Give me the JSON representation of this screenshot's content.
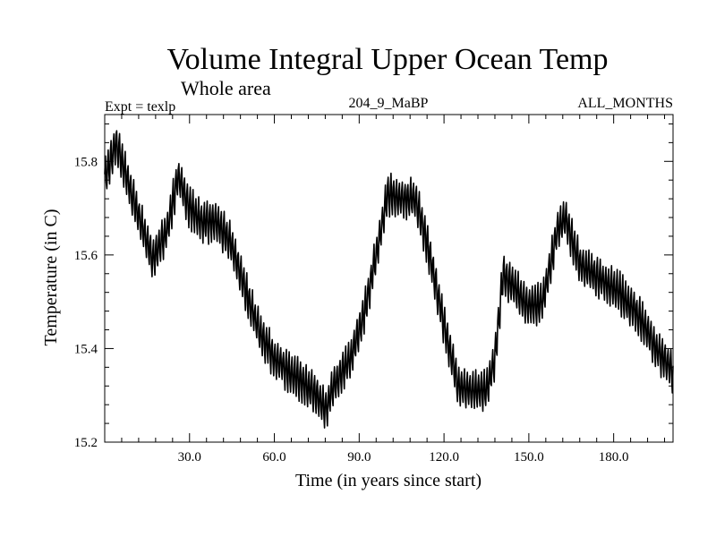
{
  "chart_data": {
    "type": "line",
    "title": "Volume Integral Upper Ocean Temp",
    "subtitle": "Whole area",
    "experiment_label": "Expt = texlp",
    "run_label": "204_9_MaBP",
    "months_label": "ALL_MONTHS",
    "xlabel": "Time (in years since start)",
    "ylabel": "Temperature (in C)",
    "xlim": [
      0,
      201
    ],
    "ylim": [
      15.2,
      15.9
    ],
    "xticks": [
      30,
      60,
      90,
      120,
      150,
      180
    ],
    "xtick_labels": [
      "30.0",
      "60.0",
      "90.0",
      "120.0",
      "150.0",
      "180.0"
    ],
    "yticks": [
      15.2,
      15.4,
      15.6,
      15.8
    ],
    "ytick_labels": [
      "15.2",
      "15.4",
      "15.6",
      "15.8"
    ],
    "grid": false,
    "series": [
      {
        "name": "Temperature",
        "color": "#000000",
        "note": "annual-cycle oscillation of about +/-0.05 C superimposed on this trend",
        "trend_x": [
          0,
          4,
          10,
          17,
          22,
          26,
          30,
          35,
          40,
          45,
          50,
          55,
          60,
          65,
          70,
          75,
          78,
          82,
          87,
          92,
          97,
          100,
          105,
          110,
          115,
          120,
          125,
          130,
          135,
          138,
          141,
          146,
          150,
          155,
          160,
          163,
          168,
          175,
          182,
          190,
          195,
          201
        ],
        "trend_y": [
          15.76,
          15.84,
          15.72,
          15.59,
          15.65,
          15.77,
          15.7,
          15.67,
          15.67,
          15.62,
          15.52,
          15.43,
          15.38,
          15.35,
          15.33,
          15.3,
          15.27,
          15.33,
          15.38,
          15.48,
          15.63,
          15.73,
          15.72,
          15.72,
          15.6,
          15.45,
          15.32,
          15.31,
          15.31,
          15.38,
          15.56,
          15.52,
          15.49,
          15.5,
          15.65,
          15.68,
          15.58,
          15.55,
          15.52,
          15.46,
          15.4,
          15.35
        ]
      }
    ]
  }
}
